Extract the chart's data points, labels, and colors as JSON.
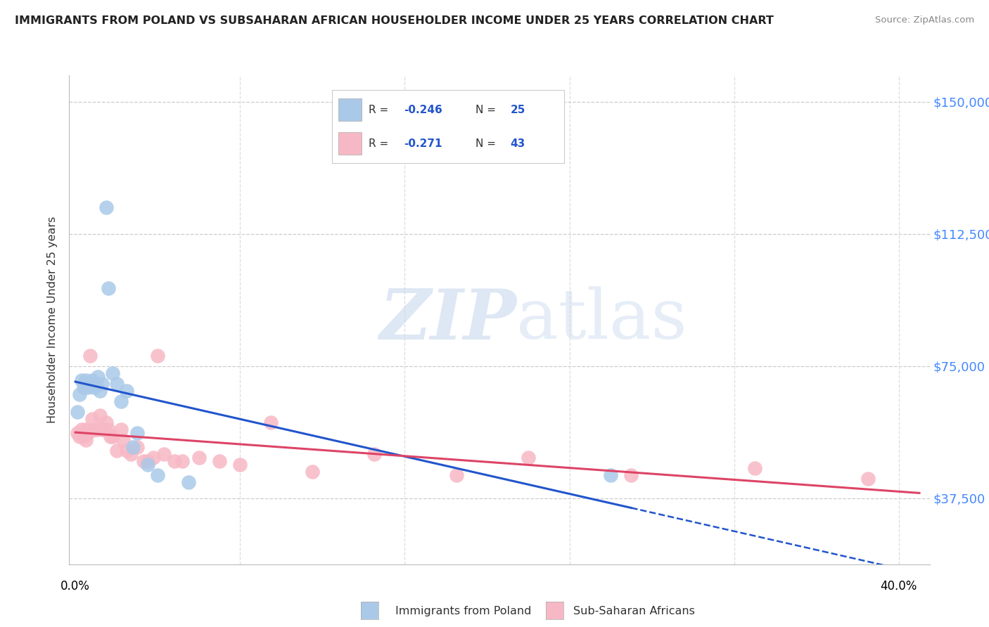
{
  "title": "IMMIGRANTS FROM POLAND VS SUBSAHARAN AFRICAN HOUSEHOLDER INCOME UNDER 25 YEARS CORRELATION CHART",
  "source": "Source: ZipAtlas.com",
  "ylabel": "Householder Income Under 25 years",
  "ytick_labels": [
    "$37,500",
    "$75,000",
    "$112,500",
    "$150,000"
  ],
  "ytick_values": [
    37500,
    75000,
    112500,
    150000
  ],
  "ymin": 18750,
  "ymax": 157500,
  "xmin": -0.003,
  "xmax": 0.415,
  "legend_entry1_r": "R = -0.246",
  "legend_entry1_n": "N = 25",
  "legend_entry2_r": "R = -0.271",
  "legend_entry2_n": "N = 43",
  "legend_label1": "Immigrants from Poland",
  "legend_label2": "Sub-Saharan Africans",
  "color_poland": "#aac9e8",
  "color_africa": "#f7b8c5",
  "trendline_poland_color": "#2255cc",
  "trendline_africa_color": "#dd4466",
  "watermark_zip": "ZIP",
  "watermark_atlas": "atlas",
  "poland_x": [
    0.001,
    0.002,
    0.003,
    0.004,
    0.005,
    0.006,
    0.007,
    0.008,
    0.009,
    0.01,
    0.011,
    0.012,
    0.013,
    0.015,
    0.016,
    0.018,
    0.02,
    0.022,
    0.025,
    0.028,
    0.03,
    0.035,
    0.04,
    0.055,
    0.26
  ],
  "poland_y": [
    62000,
    67000,
    71000,
    69000,
    71000,
    69000,
    70000,
    71000,
    69000,
    70000,
    72000,
    68000,
    70000,
    120000,
    97000,
    73000,
    70000,
    65000,
    68000,
    52000,
    56000,
    47000,
    44000,
    42000,
    44000
  ],
  "africa_x": [
    0.001,
    0.002,
    0.003,
    0.004,
    0.005,
    0.005,
    0.006,
    0.007,
    0.008,
    0.009,
    0.01,
    0.011,
    0.012,
    0.013,
    0.014,
    0.015,
    0.016,
    0.017,
    0.018,
    0.02,
    0.022,
    0.023,
    0.025,
    0.027,
    0.03,
    0.033,
    0.035,
    0.038,
    0.04,
    0.043,
    0.048,
    0.052,
    0.06,
    0.07,
    0.08,
    0.095,
    0.115,
    0.145,
    0.185,
    0.22,
    0.27,
    0.33,
    0.385
  ],
  "africa_y": [
    56000,
    55000,
    57000,
    55000,
    57000,
    54000,
    56000,
    78000,
    60000,
    57000,
    57000,
    57000,
    61000,
    57000,
    57000,
    59000,
    57000,
    55000,
    55000,
    51000,
    57000,
    54000,
    51000,
    50000,
    52000,
    48000,
    48000,
    49000,
    78000,
    50000,
    48000,
    48000,
    49000,
    48000,
    47000,
    59000,
    45000,
    50000,
    44000,
    49000,
    44000,
    46000,
    43000
  ]
}
